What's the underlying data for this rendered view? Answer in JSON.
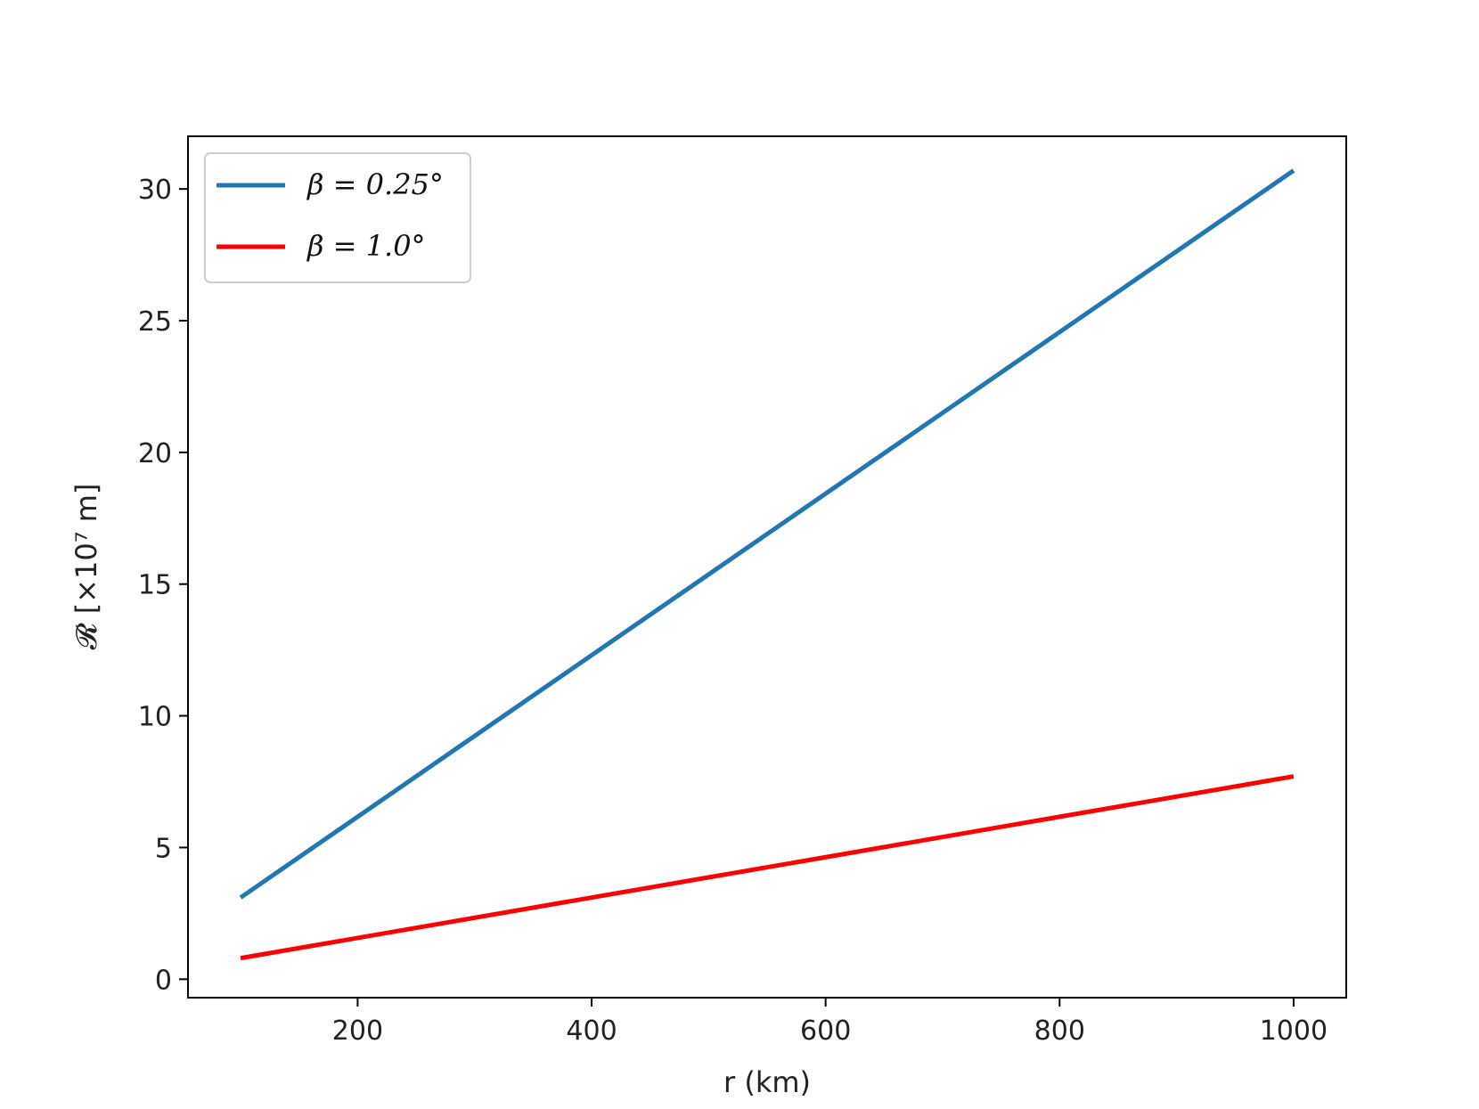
{
  "chart_data": {
    "type": "line",
    "title": "",
    "xlabel": "r (km)",
    "ylabel": "𝓡 [×10⁷ m]",
    "xlim": [
      55,
      1045
    ],
    "ylim": [
      -0.7,
      32
    ],
    "x_ticks": [
      200,
      400,
      600,
      800,
      1000
    ],
    "y_ticks": [
      0,
      5,
      10,
      15,
      20,
      25,
      30
    ],
    "grid": false,
    "legend_position": "upper-left",
    "series": [
      {
        "name": "β = 0.25°",
        "color": "#1f77b4",
        "x": [
          100,
          1000
        ],
        "y": [
          3.1,
          30.7
        ]
      },
      {
        "name": "β = 1.0°",
        "color": "#ff0000",
        "x": [
          100,
          1000
        ],
        "y": [
          0.8,
          7.7
        ]
      }
    ]
  }
}
